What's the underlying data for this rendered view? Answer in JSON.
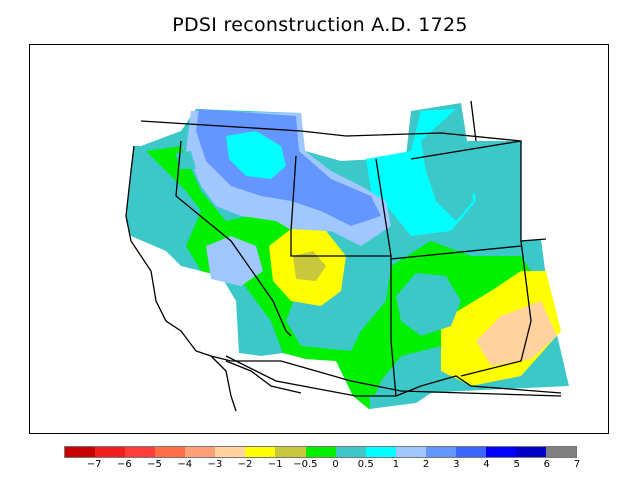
{
  "title": "PDSI reconstruction A.D. 1725",
  "legend": {
    "colors": [
      "#c80000",
      "#f01e1e",
      "#ff3c3c",
      "#ff6e46",
      "#ffa078",
      "#ffd2a0",
      "#ffff00",
      "#c8c83c",
      "#00f000",
      "#3cc8c8",
      "#00ffff",
      "#a0c8ff",
      "#6496ff",
      "#3c64ff",
      "#0000ff",
      "#0000c8",
      "#808080"
    ],
    "labels": [
      "−7",
      "−6",
      "−5",
      "−4",
      "−3",
      "−2",
      "−1",
      "−0.5",
      "0",
      "0.5",
      "1",
      "2",
      "3",
      "4",
      "5",
      "6",
      "7"
    ]
  },
  "regions": [
    {
      "name": "base-lowland",
      "color": "#3cc8c8"
    },
    {
      "name": "green-band",
      "color": "#00f000"
    },
    {
      "name": "cyan-north",
      "color": "#00ffff"
    },
    {
      "name": "blue-north",
      "color": "#a0c8ff"
    },
    {
      "name": "deep-blue-north",
      "color": "#6496ff"
    },
    {
      "name": "cyan-southeast",
      "color": "#00ffff"
    },
    {
      "name": "blue-southeast",
      "color": "#a0c8ff"
    },
    {
      "name": "yellow-center",
      "color": "#ffff00"
    },
    {
      "name": "peach-center",
      "color": "#ffd2a0"
    },
    {
      "name": "yellow-east",
      "color": "#ffff00"
    },
    {
      "name": "olive-northeast",
      "color": "#c8c83c"
    }
  ]
}
